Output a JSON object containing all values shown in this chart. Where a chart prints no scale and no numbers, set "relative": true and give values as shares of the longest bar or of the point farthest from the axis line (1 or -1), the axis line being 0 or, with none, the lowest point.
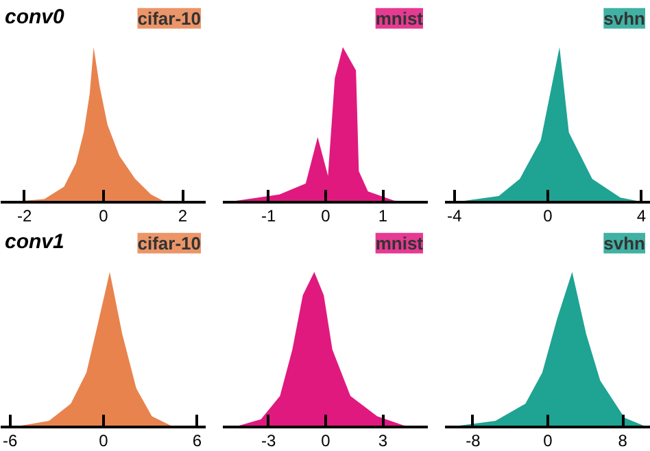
{
  "chart_data": [
    {
      "type": "area",
      "title": "conv0",
      "relative": true,
      "legend": "top right",
      "xlim": [
        -2.6,
        2.6
      ],
      "xticks": [
        -2,
        0,
        2
      ],
      "x": [
        -2.5,
        -1.5,
        -1.0,
        -0.7,
        -0.5,
        -0.35,
        -0.25,
        -0.1,
        0.1,
        0.4,
        0.8,
        1.2,
        1.5,
        1.8
      ],
      "series": [
        {
          "name": "cifar-10",
          "color": "#e8834e",
          "values": [
            0,
            0.02,
            0.1,
            0.25,
            0.45,
            0.7,
            1,
            0.75,
            0.5,
            0.3,
            0.15,
            0.05,
            0.01,
            0
          ]
        }
      ]
    },
    {
      "type": "area",
      "relative": true,
      "legend": "top right",
      "xlim": [
        -1.8,
        1.8
      ],
      "xticks": [
        -1,
        0,
        1
      ],
      "x": [
        -1.74,
        -0.81,
        -0.35,
        -0.14,
        0.04,
        0.16,
        0.3,
        0.53,
        0.58,
        0.74,
        1.2,
        1.8
      ],
      "series": [
        {
          "name": "mnist",
          "color": "#e0197f",
          "values": [
            0,
            0.05,
            0.12,
            0.42,
            0.17,
            0.8,
            1,
            0.85,
            0.2,
            0.07,
            0.01,
            0
          ]
        }
      ]
    },
    {
      "type": "area",
      "relative": true,
      "legend": "top right",
      "xlim": [
        -4.4,
        4.4
      ],
      "xticks": [
        -4,
        0,
        4
      ],
      "x": [
        -4,
        -2.1,
        -1.2,
        -0.3,
        0.5,
        0.9,
        1.9,
        3.1,
        4.1
      ],
      "series": [
        {
          "name": "svhn",
          "color": "#1fa393",
          "values": [
            0,
            0.04,
            0.15,
            0.4,
            1,
            0.45,
            0.15,
            0.03,
            0
          ]
        }
      ]
    },
    {
      "type": "area",
      "title": "conv1",
      "relative": true,
      "legend": "top right",
      "xlim": [
        -6.6,
        6.6
      ],
      "xticks": [
        -6,
        0,
        6
      ],
      "x": [
        -5.8,
        -3.5,
        -2.1,
        -1.1,
        -0.4,
        0.4,
        1.2,
        2.1,
        3.1,
        4.5
      ],
      "series": [
        {
          "name": "cifar-10",
          "color": "#e8834e",
          "values": [
            0,
            0.04,
            0.15,
            0.35,
            0.65,
            1,
            0.6,
            0.25,
            0.07,
            0
          ]
        }
      ]
    },
    {
      "type": "area",
      "relative": true,
      "legend": "top right",
      "xlim": [
        -5.4,
        5.4
      ],
      "xticks": [
        -3,
        0,
        3
      ],
      "x": [
        -4.8,
        -3.4,
        -2.4,
        -1.75,
        -1.2,
        -0.6,
        -0.1,
        0.35,
        1.3,
        2.7,
        4.1,
        5.3
      ],
      "series": [
        {
          "name": "mnist",
          "color": "#e0197f",
          "values": [
            0,
            0.05,
            0.2,
            0.5,
            0.85,
            1,
            0.85,
            0.5,
            0.2,
            0.07,
            0.01,
            0
          ]
        }
      ]
    },
    {
      "type": "area",
      "relative": true,
      "legend": "top right",
      "xlim": [
        -11,
        11
      ],
      "xticks": [
        -8,
        0,
        8
      ],
      "x": [
        -10.6,
        -5.6,
        -2.4,
        -0.6,
        1.0,
        2.6,
        4.1,
        5.6,
        8.2,
        10.6
      ],
      "series": [
        {
          "name": "svhn",
          "color": "#1fa393",
          "values": [
            0,
            0.04,
            0.15,
            0.35,
            0.7,
            1,
            0.6,
            0.3,
            0.06,
            0
          ]
        }
      ]
    }
  ]
}
